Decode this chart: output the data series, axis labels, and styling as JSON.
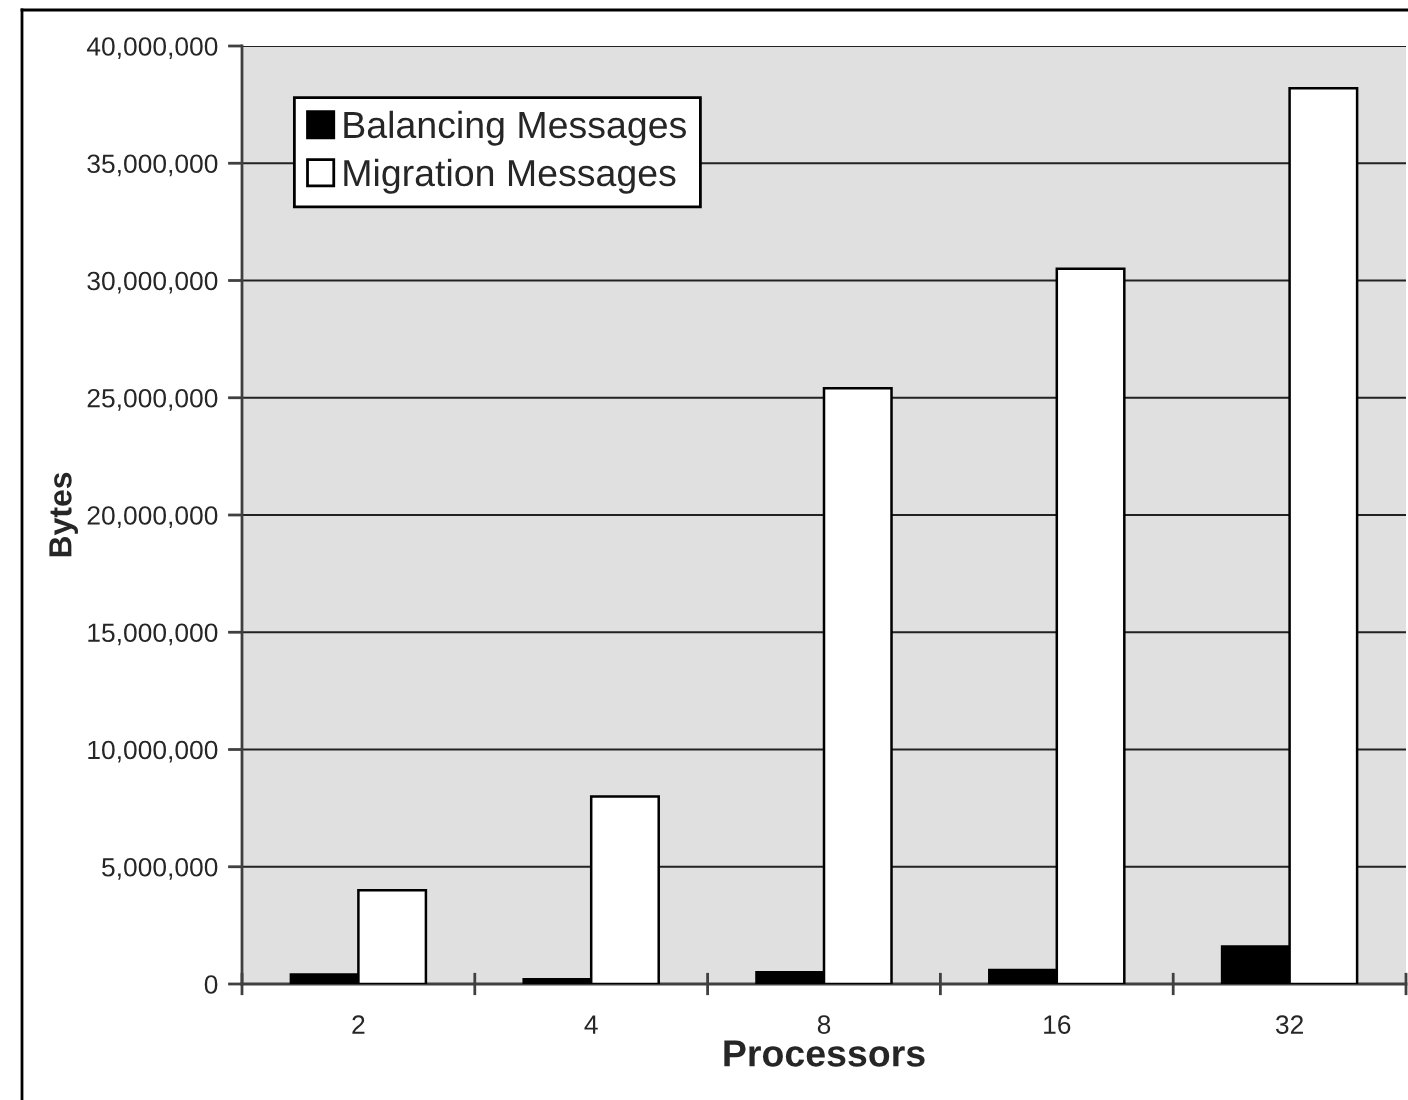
{
  "chart_data": {
    "type": "bar",
    "categories": [
      "2",
      "4",
      "8",
      "16",
      "32"
    ],
    "xlabel": "Processors",
    "ylabel": "Bytes",
    "series": [
      {
        "name": "Balancing Messages",
        "color": "#000000",
        "values": [
          400000,
          200000,
          500000,
          600000,
          1600000
        ]
      },
      {
        "name": "Migration Messages",
        "color": "#ffffff",
        "values": [
          4000000,
          8000000,
          25400000,
          30500000,
          38200000
        ]
      }
    ],
    "ylim": [
      0,
      40000000
    ],
    "yticks": [
      0,
      {
        "value": 5000000,
        "label": "5,000,000"
      },
      {
        "value": 10000000,
        "label": "10,000,000"
      },
      {
        "value": 15000000,
        "label": "15,000,000"
      },
      {
        "value": 20000000,
        "label": "20,000,000"
      },
      {
        "value": 25000000,
        "label": "25,000,000"
      },
      {
        "value": 30000000,
        "label": "30,000,000"
      },
      {
        "value": 35000000,
        "label": "35,000,000"
      },
      {
        "value": 40000000,
        "label": "40,000,000"
      }
    ],
    "grid": "y",
    "legend": "top left"
  }
}
